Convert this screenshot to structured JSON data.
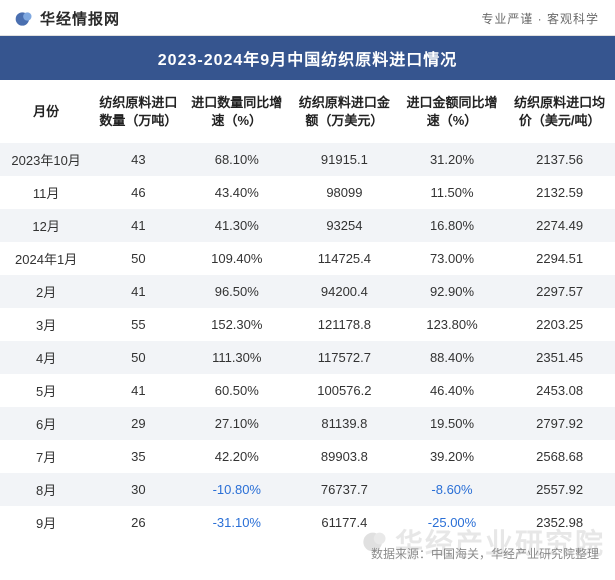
{
  "header": {
    "logo_text": "华经情报网",
    "tagline": "专业严谨 · 客观科学",
    "logo_colors": {
      "blob": "#4a6fb0",
      "accent": "#7fa8e0"
    }
  },
  "title": "2023-2024年9月中国纺织原料进口情况",
  "title_bg": "#36558f",
  "title_color": "#ffffff",
  "stripe_color": "#f2f4f7",
  "negative_color": "#2a6fd6",
  "text_color": "#333333",
  "header_font_size": 13,
  "cell_font_size": 13,
  "columns": [
    "月份",
    "纺织原料进口数量（万吨）",
    "进口数量同比增速（%）",
    "纺织原料进口金额（万美元）",
    "进口金额同比增速（%）",
    "纺织原料进口均价（美元/吨）"
  ],
  "col_widths_pct": [
    15,
    15,
    17,
    18,
    17,
    18
  ],
  "rows": [
    {
      "month": "2023年10月",
      "qty": "43",
      "qty_yoy": "68.10%",
      "value": "91915.1",
      "value_yoy": "31.20%",
      "avg_price": "2137.56",
      "qty_neg": false,
      "val_neg": false
    },
    {
      "month": "11月",
      "qty": "46",
      "qty_yoy": "43.40%",
      "value": "98099",
      "value_yoy": "11.50%",
      "avg_price": "2132.59",
      "qty_neg": false,
      "val_neg": false
    },
    {
      "month": "12月",
      "qty": "41",
      "qty_yoy": "41.30%",
      "value": "93254",
      "value_yoy": "16.80%",
      "avg_price": "2274.49",
      "qty_neg": false,
      "val_neg": false
    },
    {
      "month": "2024年1月",
      "qty": "50",
      "qty_yoy": "109.40%",
      "value": "114725.4",
      "value_yoy": "73.00%",
      "avg_price": "2294.51",
      "qty_neg": false,
      "val_neg": false
    },
    {
      "month": "2月",
      "qty": "41",
      "qty_yoy": "96.50%",
      "value": "94200.4",
      "value_yoy": "92.90%",
      "avg_price": "2297.57",
      "qty_neg": false,
      "val_neg": false
    },
    {
      "month": "3月",
      "qty": "55",
      "qty_yoy": "152.30%",
      "value": "121178.8",
      "value_yoy": "123.80%",
      "avg_price": "2203.25",
      "qty_neg": false,
      "val_neg": false
    },
    {
      "month": "4月",
      "qty": "50",
      "qty_yoy": "111.30%",
      "value": "117572.7",
      "value_yoy": "88.40%",
      "avg_price": "2351.45",
      "qty_neg": false,
      "val_neg": false
    },
    {
      "month": "5月",
      "qty": "41",
      "qty_yoy": "60.50%",
      "value": "100576.2",
      "value_yoy": "46.40%",
      "avg_price": "2453.08",
      "qty_neg": false,
      "val_neg": false
    },
    {
      "month": "6月",
      "qty": "29",
      "qty_yoy": "27.10%",
      "value": "81139.8",
      "value_yoy": "19.50%",
      "avg_price": "2797.92",
      "qty_neg": false,
      "val_neg": false
    },
    {
      "month": "7月",
      "qty": "35",
      "qty_yoy": "42.20%",
      "value": "89903.8",
      "value_yoy": "39.20%",
      "avg_price": "2568.68",
      "qty_neg": false,
      "val_neg": false
    },
    {
      "month": "8月",
      "qty": "30",
      "qty_yoy": "-10.80%",
      "value": "76737.7",
      "value_yoy": "-8.60%",
      "avg_price": "2557.92",
      "qty_neg": true,
      "val_neg": true
    },
    {
      "month": "9月",
      "qty": "26",
      "qty_yoy": "-31.10%",
      "value": "61177.4",
      "value_yoy": "-25.00%",
      "avg_price": "2352.98",
      "qty_neg": true,
      "val_neg": true
    }
  ],
  "footer": "数据来源：中国海关，华经产业研究院整理",
  "watermark_text": "华经产业研究院"
}
